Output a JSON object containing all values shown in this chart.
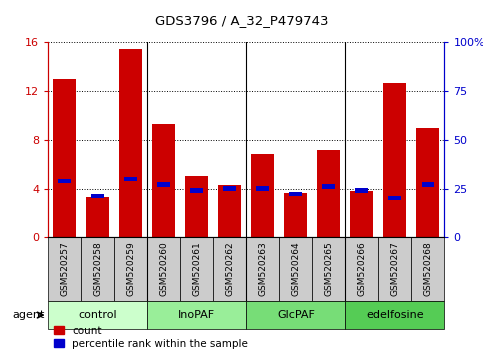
{
  "title": "GDS3796 / A_32_P479743",
  "samples": [
    "GSM520257",
    "GSM520258",
    "GSM520259",
    "GSM520260",
    "GSM520261",
    "GSM520262",
    "GSM520263",
    "GSM520264",
    "GSM520265",
    "GSM520266",
    "GSM520267",
    "GSM520268"
  ],
  "count_values": [
    13.0,
    3.3,
    15.5,
    9.3,
    5.0,
    4.3,
    6.8,
    3.6,
    7.2,
    3.8,
    12.7,
    9.0
  ],
  "percentile_values": [
    29,
    21,
    30,
    27,
    24,
    25,
    25,
    22,
    26,
    24,
    20,
    27
  ],
  "count_color": "#cc0000",
  "percentile_color": "#0000cc",
  "ylim_left": [
    0,
    16
  ],
  "ylim_right": [
    0,
    100
  ],
  "yticks_left": [
    0,
    4,
    8,
    12,
    16
  ],
  "yticks_right": [
    0,
    25,
    50,
    75,
    100
  ],
  "ytick_labels_right": [
    "0",
    "25",
    "50",
    "75",
    "100%"
  ],
  "groups": [
    {
      "label": "control",
      "start": 0,
      "end": 3,
      "color": "#ccffcc"
    },
    {
      "label": "InoPAF",
      "start": 3,
      "end": 6,
      "color": "#99ee99"
    },
    {
      "label": "GlcPAF",
      "start": 6,
      "end": 9,
      "color": "#77dd77"
    },
    {
      "label": "edelfosine",
      "start": 9,
      "end": 12,
      "color": "#55cc55"
    }
  ],
  "agent_label": "agent",
  "legend_count": "count",
  "legend_percentile": "percentile rank within the sample",
  "bar_width": 0.7,
  "tick_bg_color": "#cccccc",
  "plot_bg_color": "#ffffff",
  "group_dividers": [
    3,
    6,
    9
  ]
}
